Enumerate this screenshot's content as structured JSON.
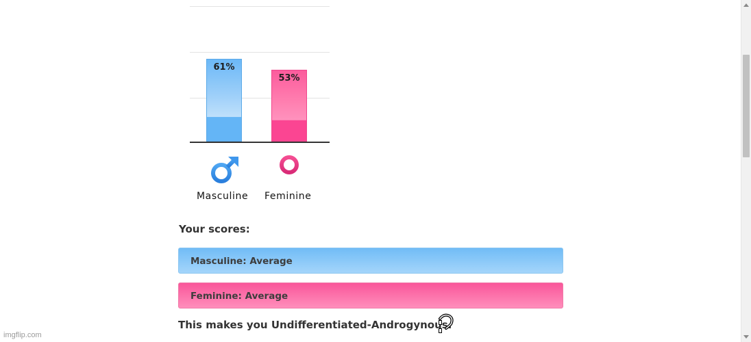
{
  "chart_data": {
    "type": "bar",
    "categories": [
      "Masculine",
      "Feminine"
    ],
    "values": [
      61,
      53
    ],
    "value_labels": [
      "61%",
      "53%"
    ],
    "ylim": [
      0,
      100
    ],
    "grid": true,
    "colors": [
      "#6bb8f7",
      "#fb5b9c"
    ]
  },
  "icons": {
    "masculine": "male-symbol-icon",
    "feminine": "female-symbol-icon"
  },
  "results": {
    "heading": "Your scores:",
    "masculine_score": "Masculine: Average",
    "feminine_score": "Feminine: Average",
    "conclusion": "This makes you Undifferentiated-Androgynous.",
    "colors": {
      "masculine": "#8ccbf9",
      "feminine": "#fc6aa6"
    }
  },
  "watermark": "imgflip.com"
}
